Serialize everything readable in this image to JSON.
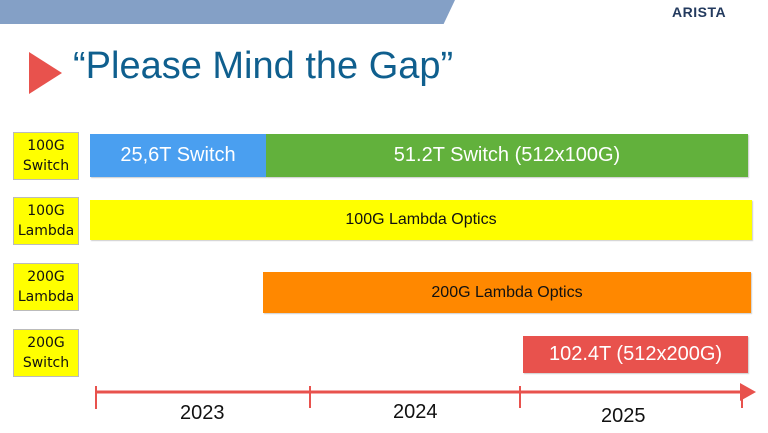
{
  "header": {
    "logo": "ARISTA"
  },
  "title": "“Please Mind the Gap”",
  "rows": [
    {
      "label_line1": "100G",
      "label_line2": "Switch"
    },
    {
      "label_line1": "100G",
      "label_line2": "Lambda"
    },
    {
      "label_line1": "200G",
      "label_line2": "Lambda"
    },
    {
      "label_line1": "200G",
      "label_line2": "Switch"
    }
  ],
  "bars": {
    "switch_25_6": "25,6T Switch",
    "switch_51_2": "51.2T Switch (512x100G)",
    "lambda_100g": "100G Lambda Optics",
    "lambda_200g": "200G Lambda Optics",
    "switch_102_4": "102.4T (512x200G)"
  },
  "colors": {
    "blue": "#4a9ff0",
    "green": "#62b13c",
    "yellow": "#ffff00",
    "orange": "#ff8800",
    "red": "#e8524d",
    "title": "#0f5f8e"
  },
  "timeline": {
    "years": [
      "2023",
      "2024",
      "2025"
    ]
  }
}
